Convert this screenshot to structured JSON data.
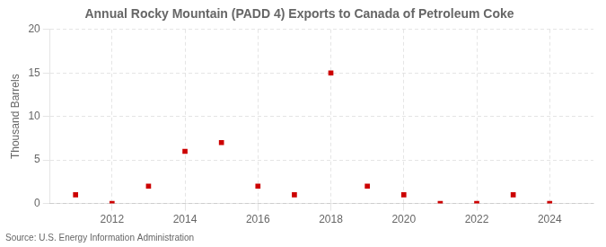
{
  "chart_data": {
    "type": "scatter",
    "title": "Annual Rocky Mountain (PADD 4) Exports to Canada of Petroleum Coke",
    "ylabel": "Thousand Barrels",
    "source": "Source: U.S. Energy Information Administration",
    "x": [
      2011,
      2012,
      2013,
      2014,
      2015,
      2016,
      2017,
      2018,
      2019,
      2020,
      2021,
      2022,
      2023,
      2024
    ],
    "values": [
      1,
      0,
      2,
      6,
      7,
      2,
      1,
      15,
      2,
      1,
      0,
      0,
      1,
      0
    ],
    "color": "#cc0000",
    "marker": "square",
    "xlim": [
      2010.3,
      2025.2
    ],
    "xticks": [
      2012,
      2014,
      2016,
      2018,
      2020,
      2022,
      2024
    ],
    "ylim": [
      0,
      20
    ],
    "yticks": [
      0,
      5,
      10,
      15,
      20
    ],
    "grid": true
  }
}
